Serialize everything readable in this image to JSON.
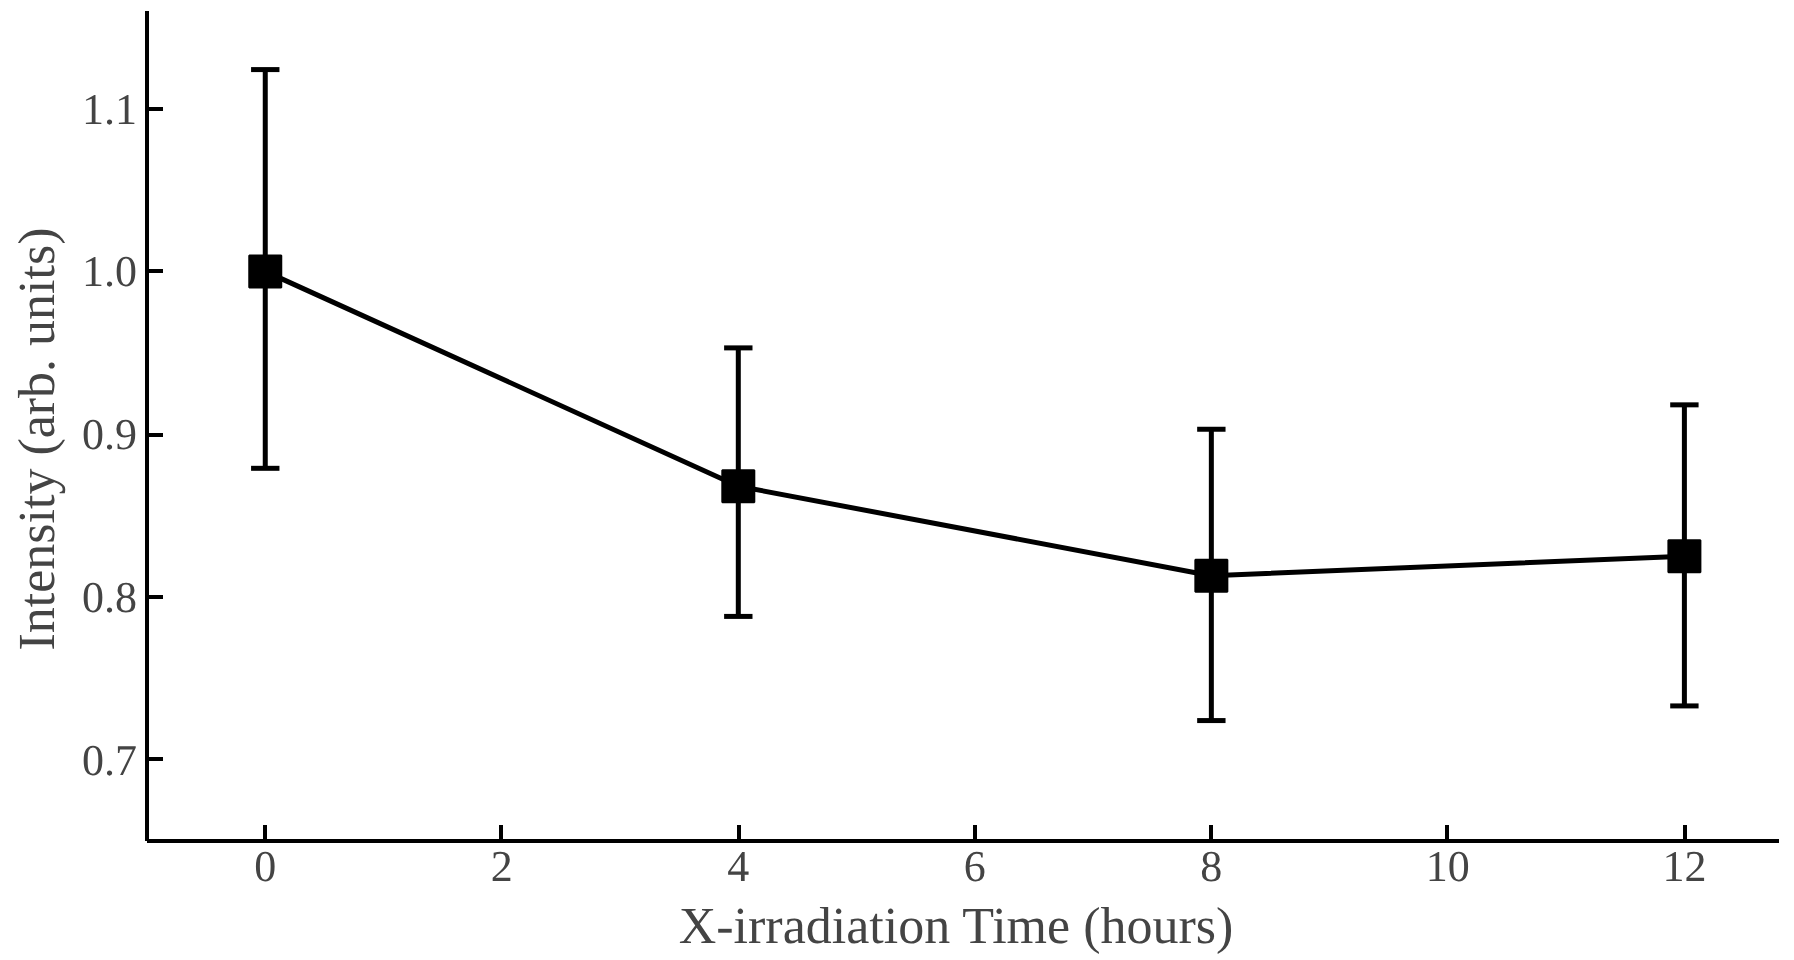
{
  "chart_data": {
    "type": "line",
    "xlabel": "X-irradiation Time  (hours)",
    "ylabel": "Intensity   (arb. units)",
    "x": [
      0,
      4,
      8,
      12
    ],
    "series": [
      {
        "color": "#000000",
        "values": [
          1.0,
          0.868,
          0.813,
          0.825
        ],
        "errors": [
          [
            0.879,
            1.124
          ],
          [
            0.788,
            0.953
          ],
          [
            0.724,
            0.903
          ],
          [
            0.733,
            0.918
          ]
        ]
      }
    ],
    "xlim": [
      -1.0,
      12.8
    ],
    "ylim": [
      0.65,
      1.16
    ],
    "xticks": [
      0,
      2,
      4,
      6,
      8,
      10,
      12
    ],
    "yticks": [
      0.7,
      0.8,
      0.9,
      {
        "value": 1.0,
        "label": "1.0"
      },
      1.1
    ],
    "grid": false,
    "marker": "square",
    "line_style": "solid"
  }
}
